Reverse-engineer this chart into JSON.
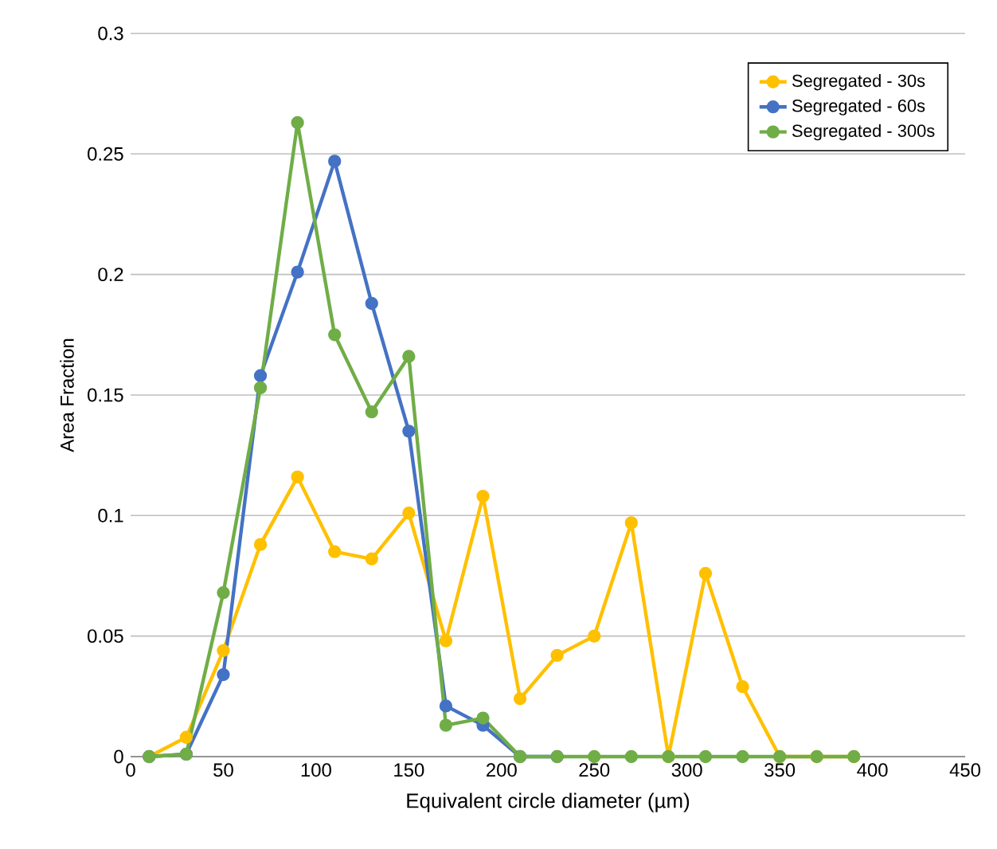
{
  "chart_data": {
    "type": "line",
    "xlabel": "Equivalent circle diameter (µm)",
    "ylabel": "Area Fraction",
    "x": [
      10,
      30,
      50,
      70,
      90,
      110,
      130,
      150,
      170,
      190,
      210,
      230,
      250,
      270,
      290,
      310,
      330,
      350,
      370,
      390
    ],
    "series": [
      {
        "name": "Segregated - 30s",
        "color": "#ffc000",
        "values": [
          0,
          0.008,
          0.044,
          0.088,
          0.116,
          0.085,
          0.082,
          0.101,
          0.048,
          0.108,
          0.024,
          0.042,
          0.05,
          0.097,
          0,
          0.076,
          0.029,
          0,
          0,
          0
        ]
      },
      {
        "name": "Segregated - 60s",
        "color": "#4472c4",
        "values": [
          0,
          0.001,
          0.034,
          0.158,
          0.201,
          0.247,
          0.188,
          0.135,
          0.021,
          0.013,
          0,
          0,
          null,
          null,
          null,
          null,
          null,
          null,
          null,
          null
        ]
      },
      {
        "name": "Segregated - 300s",
        "color": "#70ad47",
        "values": [
          0,
          0.001,
          0.068,
          0.153,
          0.263,
          0.175,
          0.143,
          0.166,
          0.013,
          0.016,
          0,
          0,
          0,
          0,
          0,
          0,
          0,
          0,
          0,
          0
        ]
      }
    ],
    "xlim": [
      0,
      450
    ],
    "xticks": [
      0,
      50,
      100,
      150,
      200,
      250,
      300,
      350,
      400,
      450
    ],
    "ylim": [
      0,
      0.3
    ],
    "yticks": [
      0,
      0.05,
      0.1,
      0.15,
      0.2,
      0.25,
      0.3
    ],
    "grid": "y",
    "legend": "top right",
    "marker": "circle",
    "line_style": "solid"
  }
}
